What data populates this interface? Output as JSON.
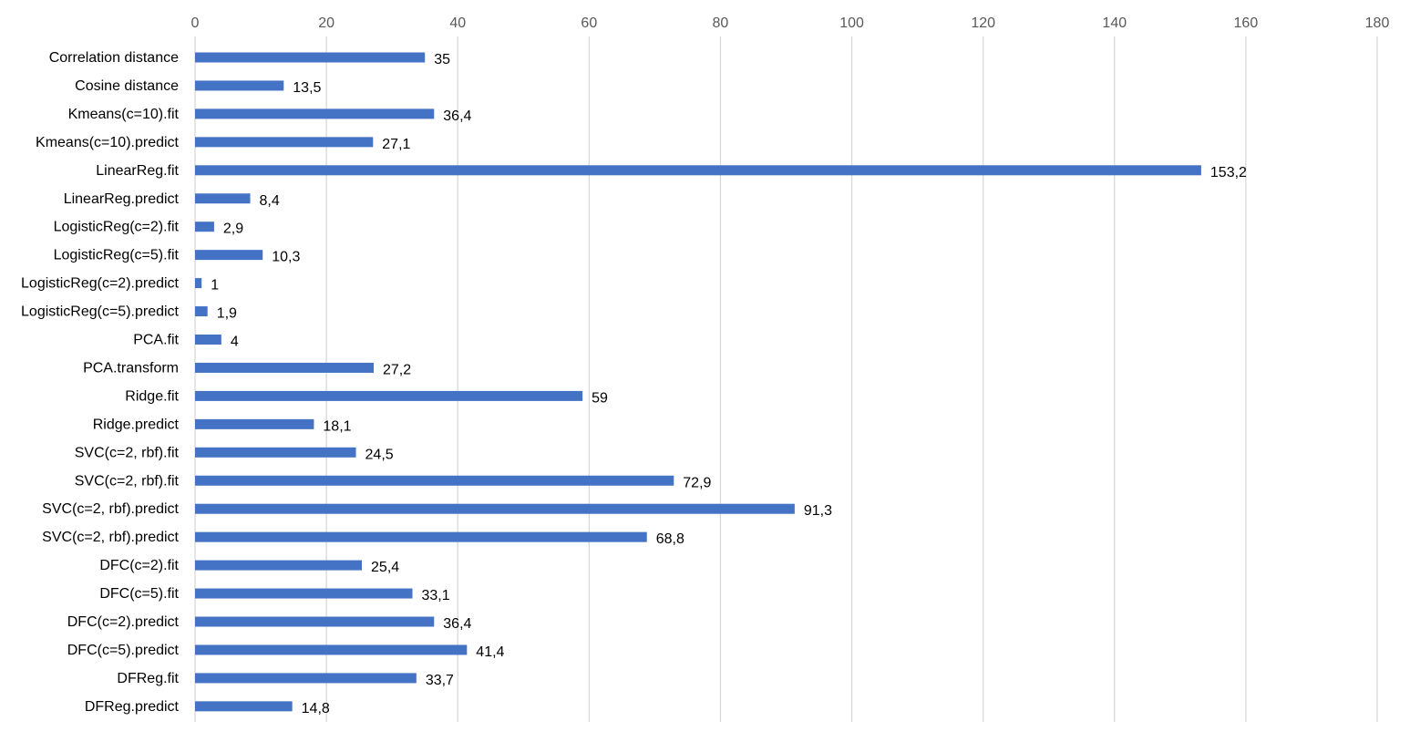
{
  "chart_data": {
    "type": "bar",
    "orientation": "horizontal",
    "title": "",
    "xlabel": "",
    "ylabel": "",
    "xlim": [
      0,
      180
    ],
    "x_ticks": [
      0,
      20,
      40,
      60,
      80,
      100,
      120,
      140,
      160,
      180
    ],
    "x_tick_labels": [
      "0",
      "20",
      "40",
      "60",
      "80",
      "100",
      "120",
      "140",
      "160",
      "180"
    ],
    "x_axis_position": "top",
    "grid": true,
    "legend": "none",
    "bar_color": "#4472C4",
    "categories": [
      "Correlation distance",
      "Cosine distance",
      "Kmeans(c=10).fit",
      "Kmeans(c=10).predict",
      "LinearReg.fit",
      "LinearReg.predict",
      "LogisticReg(c=2).fit",
      "LogisticReg(c=5).fit",
      "LogisticReg(c=2).predict",
      "LogisticReg(c=5).predict",
      "PCA.fit",
      "PCA.transform",
      "Ridge.fit",
      "Ridge.predict",
      "SVC(c=2, rbf).fit",
      "SVC(c=2, rbf).fit",
      "SVC(c=2, rbf).predict",
      "SVC(c=2, rbf).predict",
      "DFC(c=2).fit",
      "DFC(c=5).fit",
      "DFC(c=2).predict",
      "DFC(c=5).predict",
      "DFReg.fit",
      "DFReg.predict"
    ],
    "values": [
      35,
      13.5,
      36.4,
      27.1,
      153.2,
      8.4,
      2.9,
      10.3,
      1,
      1.9,
      4,
      27.2,
      59,
      18.1,
      24.5,
      72.9,
      91.3,
      68.8,
      25.4,
      33.1,
      36.4,
      41.4,
      33.7,
      14.8
    ],
    "data_labels": [
      "35",
      "13,5",
      "36,4",
      "27,1",
      "153,2",
      "8,4",
      "2,9",
      "10,3",
      "1",
      "1,9",
      "4",
      "27,2",
      "59",
      "18,1",
      "24,5",
      "72,9",
      "91,3",
      "68,8",
      "25,4",
      "33,1",
      "36,4",
      "41,4",
      "33,7",
      "14,8"
    ]
  }
}
